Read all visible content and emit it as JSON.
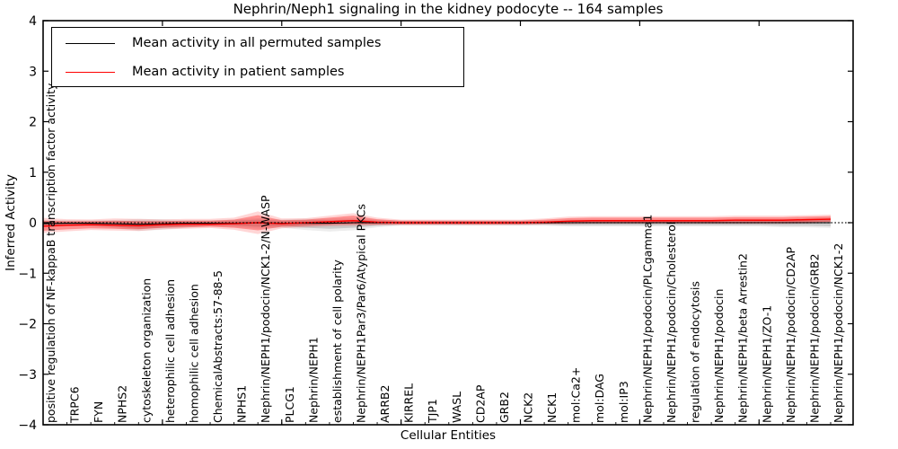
{
  "chart_data": {
    "type": "line",
    "title": "Nephrin/Neph1 signaling in the kidney podocyte -- 164 samples",
    "xlabel": "Cellular Entities",
    "ylabel": "Inferred Activity",
    "ylim": [
      -4,
      4
    ],
    "yticks": [
      4,
      3,
      2,
      1,
      0,
      -1,
      -2,
      -3,
      -4
    ],
    "ytick_labels": [
      "4",
      "3",
      "2",
      "1",
      "0",
      "−1",
      "−2",
      "−3",
      "−4"
    ],
    "grid": false,
    "zero_line": true,
    "x_major_tick_every": 5,
    "legend": {
      "position": "upper left",
      "entries": [
        {
          "label": "Mean activity in all permuted samples",
          "color": "#000000"
        },
        {
          "label": "Mean activity in patient samples",
          "color": "#ff0000"
        }
      ]
    },
    "categories": [
      "positive regulation of NF-kappaB transcription factor activity",
      "TRPC6",
      "FYN",
      "NPHS2",
      "cytoskeleton organization",
      "heterophilic cell adhesion",
      "homophilic cell adhesion",
      "ChemicalAbstracts:57-88-5",
      "NPHS1",
      "Nephrin/NEPH1/podocin/NCK1-2/N-WASP",
      "PLCG1",
      "Nephrin/NEPH1",
      "establishment of cell polarity",
      "Nephrin/NEPH1Par3/Par6/Atypical PKCs",
      "ARRB2",
      "KIRREL",
      "TJP1",
      "WASL",
      "CD2AP",
      "GRB2",
      "NCK2",
      "NCK1",
      "mol:Ca2+",
      "mol:DAG",
      "mol:IP3",
      "Nephrin/NEPH1/podocin/PLCgamma1",
      "Nephrin/NEPH1/podocin/Cholesterol",
      "regulation of endocytosis",
      "Nephrin/NEPH1/podocin",
      "Nephrin/NEPH1/beta Arrestin2",
      "Nephrin/NEPH1/ZO-1",
      "Nephrin/NEPH1/podocin/CD2AP",
      "Nephrin/NEPH1/podocin/GRB2",
      "Nephrin/NEPH1/podocin/NCK1-2"
    ],
    "series": [
      {
        "name": "Mean activity in all permuted samples",
        "color": "#000000",
        "line_width": 1.1,
        "values": [
          -0.02,
          -0.01,
          -0.01,
          -0.02,
          -0.03,
          -0.02,
          -0.01,
          -0.01,
          -0.01,
          0.0,
          -0.01,
          -0.01,
          -0.01,
          0.0,
          0.0,
          0.0,
          0.0,
          0.0,
          0.0,
          0.0,
          0.0,
          0.0,
          0.0,
          0.0,
          0.0,
          0.0,
          0.0,
          0.0,
          0.0,
          0.0,
          0.0,
          0.0,
          0.0,
          0.0
        ],
        "band_low": [
          -0.06,
          -0.05,
          -0.05,
          -0.08,
          -0.12,
          -0.1,
          -0.07,
          -0.05,
          -0.06,
          -0.08,
          -0.07,
          -0.1,
          -0.12,
          -0.1,
          -0.06,
          -0.04,
          -0.04,
          -0.04,
          -0.04,
          -0.04,
          -0.04,
          -0.04,
          -0.05,
          -0.05,
          -0.05,
          -0.05,
          -0.05,
          -0.05,
          -0.05,
          -0.05,
          -0.05,
          -0.06,
          -0.06,
          -0.07
        ],
        "band_high": [
          0.03,
          0.03,
          0.03,
          0.03,
          0.04,
          0.04,
          0.03,
          0.03,
          0.04,
          0.06,
          0.04,
          0.05,
          0.05,
          0.06,
          0.04,
          0.03,
          0.03,
          0.03,
          0.03,
          0.03,
          0.03,
          0.03,
          0.04,
          0.04,
          0.04,
          0.04,
          0.04,
          0.04,
          0.04,
          0.05,
          0.05,
          0.05,
          0.06,
          0.07
        ]
      },
      {
        "name": "Mean activity in patient samples",
        "color": "#ff0000",
        "line_width": 1.5,
        "values": [
          -0.07,
          -0.05,
          -0.04,
          -0.05,
          -0.06,
          -0.04,
          -0.03,
          -0.03,
          -0.02,
          0.0,
          -0.02,
          0.0,
          0.02,
          0.04,
          0.01,
          0.0,
          0.0,
          0.0,
          0.0,
          0.0,
          0.0,
          0.01,
          0.03,
          0.04,
          0.04,
          0.04,
          0.04,
          0.04,
          0.04,
          0.05,
          0.05,
          0.05,
          0.06,
          0.07
        ],
        "band_low": [
          -0.16,
          -0.13,
          -0.11,
          -0.12,
          -0.13,
          -0.1,
          -0.09,
          -0.08,
          -0.1,
          -0.15,
          -0.08,
          -0.06,
          -0.04,
          -0.03,
          -0.03,
          -0.03,
          -0.03,
          -0.03,
          -0.03,
          -0.03,
          -0.03,
          -0.02,
          -0.01,
          0.0,
          0.0,
          0.0,
          0.0,
          0.0,
          0.0,
          0.0,
          0.0,
          0.0,
          0.01,
          0.02
        ],
        "band_high": [
          0.04,
          0.03,
          0.03,
          0.04,
          0.03,
          0.03,
          0.04,
          0.04,
          0.06,
          0.15,
          0.05,
          0.06,
          0.1,
          0.14,
          0.07,
          0.04,
          0.04,
          0.04,
          0.04,
          0.04,
          0.04,
          0.06,
          0.09,
          0.1,
          0.1,
          0.1,
          0.1,
          0.1,
          0.1,
          0.11,
          0.11,
          0.11,
          0.12,
          0.13
        ]
      }
    ]
  }
}
